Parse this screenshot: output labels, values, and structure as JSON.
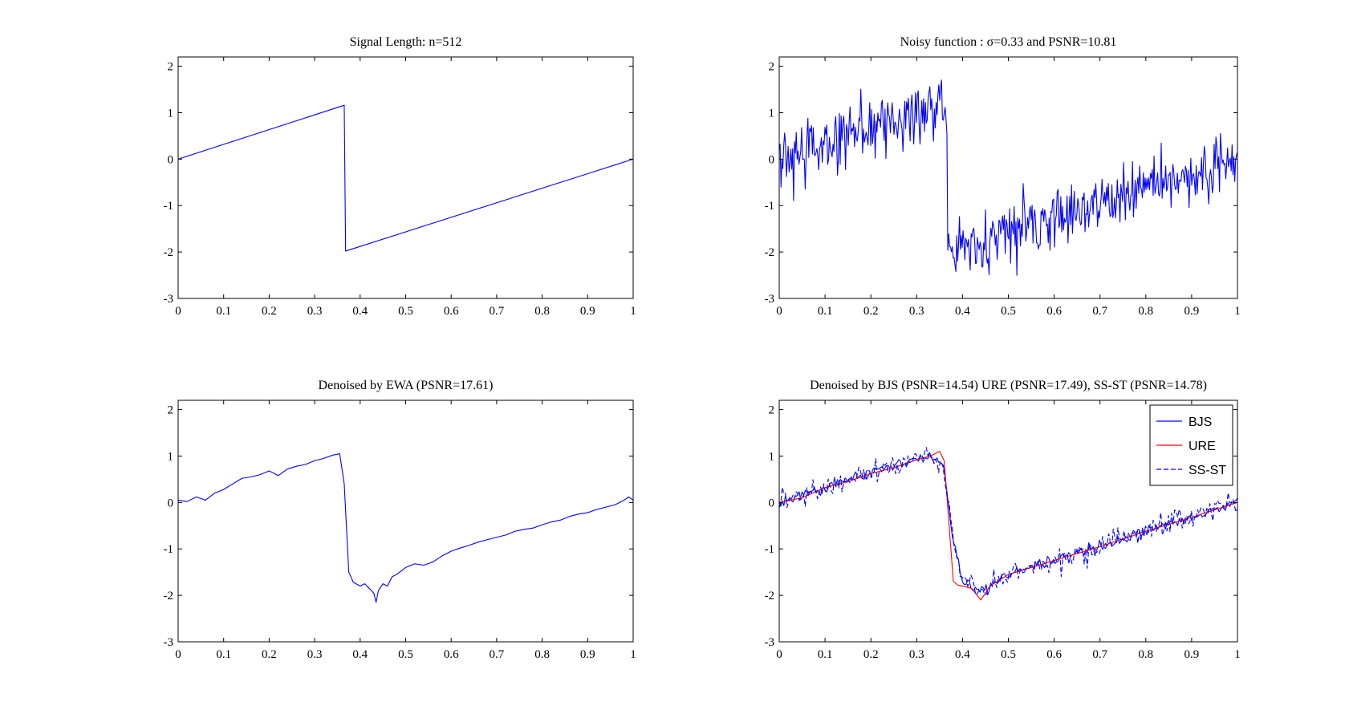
{
  "figure": {
    "background": "#ffffff",
    "line_color": "#0000ff",
    "ure_color": "#ff0000"
  },
  "chart_data": [
    {
      "type": "line",
      "title": "Signal Length: n=512",
      "xlim": [
        0,
        1
      ],
      "ylim": [
        -3,
        2.2
      ],
      "xticks": [
        0,
        0.1,
        0.2,
        0.3,
        0.4,
        0.5,
        0.6,
        0.7,
        0.8,
        0.9,
        1
      ],
      "xtick_labels": [
        "0",
        "0.1",
        "0.2",
        "0.3",
        "0.4",
        "0.5",
        "0.6",
        "0.7",
        "0.8",
        "0.9",
        "1"
      ],
      "yticks": [
        -3,
        -2,
        -1,
        0,
        1,
        2
      ],
      "ytick_labels": [
        "-3",
        "-2",
        "-1",
        "0",
        "1",
        "2"
      ],
      "grid": false,
      "series": [
        {
          "color": "#0000ff",
          "style": "solid",
          "x": [
            0,
            0.365,
            0.368,
            1
          ],
          "y": [
            0,
            1.16,
            -1.98,
            0
          ]
        }
      ]
    },
    {
      "type": "line",
      "title": "Noisy function : σ=0.33 and PSNR=10.81",
      "xlim": [
        0,
        1
      ],
      "ylim": [
        -3,
        2.2
      ],
      "xticks": [
        0,
        0.1,
        0.2,
        0.3,
        0.4,
        0.5,
        0.6,
        0.7,
        0.8,
        0.9,
        1
      ],
      "xtick_labels": [
        "0",
        "0.1",
        "0.2",
        "0.3",
        "0.4",
        "0.5",
        "0.6",
        "0.7",
        "0.8",
        "0.9",
        "1"
      ],
      "yticks": [
        -3,
        -2,
        -1,
        0,
        1,
        2
      ],
      "ytick_labels": [
        "-3",
        "-2",
        "-1",
        "0",
        "1",
        "2"
      ],
      "grid": false,
      "series": [
        {
          "color": "#0000ff",
          "style": "solid",
          "n_points": 512,
          "noise_sigma": 0.33,
          "x": [
            0,
            0.1,
            0.2,
            0.3,
            0.365,
            0.368,
            0.44,
            0.6,
            0.8,
            1
          ],
          "y": [
            0,
            0.32,
            0.63,
            0.95,
            1.16,
            -1.98,
            -1.76,
            -1.25,
            -0.62,
            0
          ]
        }
      ]
    },
    {
      "type": "line",
      "title": "Denoised by EWA (PSNR=17.61)",
      "xlim": [
        0,
        1
      ],
      "ylim": [
        -3,
        2.2
      ],
      "xticks": [
        0,
        0.1,
        0.2,
        0.3,
        0.4,
        0.5,
        0.6,
        0.7,
        0.8,
        0.9,
        1
      ],
      "xtick_labels": [
        "0",
        "0.1",
        "0.2",
        "0.3",
        "0.4",
        "0.5",
        "0.6",
        "0.7",
        "0.8",
        "0.9",
        "1"
      ],
      "yticks": [
        -3,
        -2,
        -1,
        0,
        1,
        2
      ],
      "ytick_labels": [
        "-3",
        "-2",
        "-1",
        "0",
        "1",
        "2"
      ],
      "grid": false,
      "series": [
        {
          "color": "#0000ff",
          "style": "solid",
          "x": [
            0,
            0.02,
            0.04,
            0.06,
            0.08,
            0.1,
            0.12,
            0.14,
            0.16,
            0.18,
            0.2,
            0.22,
            0.24,
            0.26,
            0.28,
            0.3,
            0.32,
            0.34,
            0.355,
            0.365,
            0.375,
            0.385,
            0.4,
            0.41,
            0.42,
            0.43,
            0.435,
            0.44,
            0.45,
            0.46,
            0.47,
            0.48,
            0.5,
            0.52,
            0.54,
            0.56,
            0.58,
            0.6,
            0.62,
            0.64,
            0.66,
            0.68,
            0.7,
            0.72,
            0.74,
            0.76,
            0.78,
            0.8,
            0.82,
            0.84,
            0.86,
            0.88,
            0.9,
            0.92,
            0.94,
            0.96,
            0.98,
            0.99,
            1
          ],
          "y": [
            0.05,
            0.02,
            0.12,
            0.05,
            0.2,
            0.28,
            0.4,
            0.52,
            0.55,
            0.6,
            0.68,
            0.58,
            0.72,
            0.78,
            0.82,
            0.9,
            0.95,
            1.02,
            1.05,
            0.4,
            -1.5,
            -1.72,
            -1.8,
            -1.75,
            -1.85,
            -1.95,
            -2.15,
            -1.9,
            -1.75,
            -1.8,
            -1.6,
            -1.55,
            -1.4,
            -1.32,
            -1.35,
            -1.28,
            -1.15,
            -1.05,
            -0.98,
            -0.92,
            -0.85,
            -0.8,
            -0.75,
            -0.7,
            -0.62,
            -0.58,
            -0.55,
            -0.48,
            -0.42,
            -0.38,
            -0.3,
            -0.25,
            -0.22,
            -0.15,
            -0.1,
            -0.05,
            0.05,
            0.12,
            0.05
          ]
        }
      ]
    },
    {
      "type": "line",
      "title": "Denoised by BJS (PSNR=14.54) URE (PSNR=17.49), SS-ST (PSNR=14.78)",
      "xlim": [
        0,
        1
      ],
      "ylim": [
        -3,
        2.2
      ],
      "xticks": [
        0,
        0.1,
        0.2,
        0.3,
        0.4,
        0.5,
        0.6,
        0.7,
        0.8,
        0.9,
        1
      ],
      "xtick_labels": [
        "0",
        "0.1",
        "0.2",
        "0.3",
        "0.4",
        "0.5",
        "0.6",
        "0.7",
        "0.8",
        "0.9",
        "1"
      ],
      "yticks": [
        -3,
        -2,
        -1,
        0,
        1,
        2
      ],
      "ytick_labels": [
        "-3",
        "-2",
        "-1",
        "0",
        "1",
        "2"
      ],
      "grid": false,
      "legend": "top-right",
      "series": [
        {
          "name": "BJS",
          "color": "#0000ff",
          "style": "solid",
          "x": [
            0,
            0.1,
            0.2,
            0.3,
            0.34,
            0.36,
            0.38,
            0.4,
            0.44,
            0.5,
            0.6,
            0.7,
            0.8,
            0.9,
            1
          ],
          "y": [
            0,
            0.32,
            0.63,
            0.95,
            1.0,
            0.7,
            -0.8,
            -1.7,
            -1.9,
            -1.55,
            -1.25,
            -0.95,
            -0.6,
            -0.3,
            0
          ]
        },
        {
          "name": "URE",
          "color": "#ff0000",
          "style": "solid",
          "x": [
            0,
            0.05,
            0.1,
            0.15,
            0.2,
            0.25,
            0.3,
            0.33,
            0.35,
            0.36,
            0.37,
            0.38,
            0.39,
            0.4,
            0.42,
            0.44,
            0.46,
            0.5,
            0.6,
            0.7,
            0.8,
            0.9,
            1
          ],
          "y": [
            0,
            0.1,
            0.32,
            0.45,
            0.62,
            0.75,
            0.92,
            1.0,
            1.1,
            0.9,
            -0.4,
            -1.7,
            -1.78,
            -1.8,
            -1.85,
            -2.1,
            -1.8,
            -1.55,
            -1.25,
            -0.95,
            -0.62,
            -0.32,
            0
          ]
        },
        {
          "name": "SS-ST",
          "color": "#0000ff",
          "style": "dashed",
          "x": [
            0,
            0.1,
            0.2,
            0.3,
            0.34,
            0.36,
            0.38,
            0.4,
            0.44,
            0.5,
            0.6,
            0.7,
            0.8,
            0.9,
            1
          ],
          "y": [
            0,
            0.32,
            0.63,
            0.95,
            1.0,
            0.7,
            -0.8,
            -1.7,
            -1.9,
            -1.55,
            -1.25,
            -0.95,
            -0.6,
            -0.3,
            0
          ]
        }
      ]
    }
  ]
}
